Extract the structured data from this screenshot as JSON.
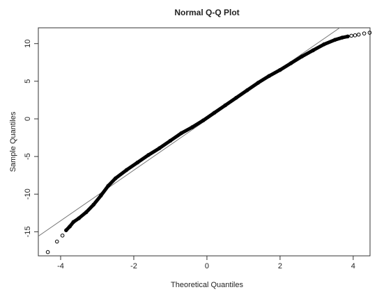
{
  "chart_data": {
    "type": "qq",
    "title": "Normal Q-Q Plot",
    "xlabel": "Theoretical Quantiles",
    "ylabel": "Sample Quantiles",
    "xlim": [
      -4.61,
      4.46
    ],
    "ylim": [
      -18.2,
      12.1
    ],
    "xticks": [
      -4,
      -2,
      0,
      2,
      4
    ],
    "yticks": [
      -15,
      -10,
      -5,
      0,
      5,
      10
    ],
    "x": [
      -4.35,
      -4.1,
      -3.95,
      -3.85,
      -3.75,
      -3.65,
      -3.5,
      -3.3,
      -3.1,
      -2.9,
      -2.7,
      -2.5,
      -2.2,
      -1.9,
      -1.6,
      -1.3,
      -1.0,
      -0.7,
      -0.4,
      -0.1,
      0.2,
      0.5,
      0.8,
      1.1,
      1.4,
      1.7,
      2.0,
      2.3,
      2.6,
      2.9,
      3.2,
      3.5,
      3.7,
      3.85,
      3.95,
      4.05,
      4.15,
      4.3,
      4.45
    ],
    "y": [
      -17.7,
      -16.3,
      -15.5,
      -14.8,
      -14.3,
      -13.7,
      -13.2,
      -12.4,
      -11.4,
      -10.2,
      -8.9,
      -7.9,
      -6.8,
      -5.8,
      -4.8,
      -3.9,
      -2.9,
      -1.9,
      -1.1,
      -0.2,
      0.8,
      1.8,
      2.8,
      3.8,
      4.8,
      5.7,
      6.5,
      7.4,
      8.3,
      9.1,
      9.9,
      10.5,
      10.8,
      10.95,
      11.05,
      11.1,
      11.2,
      11.35,
      11.45
    ],
    "color": "#000000",
    "line": {
      "intercept": -0.1,
      "slope": 3.36,
      "color": "#777777"
    }
  }
}
